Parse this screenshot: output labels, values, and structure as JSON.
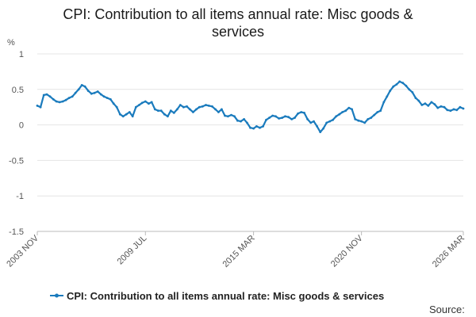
{
  "colors": {
    "series": "#1a7bbd",
    "grid": "#e4e4e4",
    "axis": "#bbbbbb",
    "text": "#555555"
  },
  "chart_data": {
    "type": "line",
    "title_lines": [
      "CPI: Contribution to all items annual rate: Misc goods &",
      "services"
    ],
    "ylabel": "%",
    "ylim": [
      -1.5,
      1
    ],
    "yticks": [
      1,
      0.5,
      0,
      -0.5,
      -1,
      -1.5
    ],
    "ytick_labels": [
      "1",
      "0.5",
      "0",
      "-0.5",
      "-1",
      "-1.5"
    ],
    "xlim": [
      2003.83,
      2026.17
    ],
    "xticks": [
      {
        "label": "2003 NOV",
        "x": 2003.83
      },
      {
        "label": "2009 JUL",
        "x": 2009.5
      },
      {
        "label": "2015 MAR",
        "x": 2015.17
      },
      {
        "label": "2020 NOV",
        "x": 2020.83
      },
      {
        "label": "2026 MAR",
        "x": 2026.17
      }
    ],
    "grid": true,
    "legend_position": "bottom",
    "source_label": "Source:",
    "series": [
      {
        "name": "CPI: Contribution to all items annual rate: Misc goods & services",
        "points": [
          [
            2003.83,
            0.27
          ],
          [
            2004.0,
            0.25
          ],
          [
            2004.17,
            0.42
          ],
          [
            2004.33,
            0.43
          ],
          [
            2004.5,
            0.4
          ],
          [
            2004.67,
            0.36
          ],
          [
            2004.83,
            0.33
          ],
          [
            2005.0,
            0.32
          ],
          [
            2005.17,
            0.33
          ],
          [
            2005.33,
            0.35
          ],
          [
            2005.5,
            0.38
          ],
          [
            2005.67,
            0.4
          ],
          [
            2005.83,
            0.45
          ],
          [
            2006.0,
            0.5
          ],
          [
            2006.17,
            0.56
          ],
          [
            2006.33,
            0.54
          ],
          [
            2006.5,
            0.48
          ],
          [
            2006.67,
            0.44
          ],
          [
            2006.83,
            0.45
          ],
          [
            2007.0,
            0.47
          ],
          [
            2007.17,
            0.43
          ],
          [
            2007.33,
            0.4
          ],
          [
            2007.5,
            0.38
          ],
          [
            2007.67,
            0.36
          ],
          [
            2007.83,
            0.3
          ],
          [
            2008.0,
            0.25
          ],
          [
            2008.17,
            0.15
          ],
          [
            2008.33,
            0.12
          ],
          [
            2008.5,
            0.15
          ],
          [
            2008.67,
            0.18
          ],
          [
            2008.83,
            0.12
          ],
          [
            2009.0,
            0.25
          ],
          [
            2009.17,
            0.28
          ],
          [
            2009.33,
            0.31
          ],
          [
            2009.5,
            0.33
          ],
          [
            2009.67,
            0.3
          ],
          [
            2009.83,
            0.32
          ],
          [
            2010.0,
            0.22
          ],
          [
            2010.17,
            0.2
          ],
          [
            2010.33,
            0.2
          ],
          [
            2010.5,
            0.15
          ],
          [
            2010.67,
            0.12
          ],
          [
            2010.83,
            0.2
          ],
          [
            2011.0,
            0.17
          ],
          [
            2011.17,
            0.22
          ],
          [
            2011.33,
            0.28
          ],
          [
            2011.5,
            0.25
          ],
          [
            2011.67,
            0.26
          ],
          [
            2011.83,
            0.22
          ],
          [
            2012.0,
            0.18
          ],
          [
            2012.17,
            0.22
          ],
          [
            2012.33,
            0.25
          ],
          [
            2012.5,
            0.26
          ],
          [
            2012.67,
            0.28
          ],
          [
            2012.83,
            0.27
          ],
          [
            2013.0,
            0.26
          ],
          [
            2013.17,
            0.22
          ],
          [
            2013.33,
            0.18
          ],
          [
            2013.5,
            0.22
          ],
          [
            2013.67,
            0.13
          ],
          [
            2013.83,
            0.12
          ],
          [
            2014.0,
            0.14
          ],
          [
            2014.17,
            0.12
          ],
          [
            2014.33,
            0.06
          ],
          [
            2014.5,
            0.05
          ],
          [
            2014.67,
            0.08
          ],
          [
            2014.83,
            0.03
          ],
          [
            2015.0,
            -0.04
          ],
          [
            2015.17,
            -0.05
          ],
          [
            2015.33,
            -0.02
          ],
          [
            2015.5,
            -0.04
          ],
          [
            2015.67,
            -0.02
          ],
          [
            2015.83,
            0.07
          ],
          [
            2016.0,
            0.1
          ],
          [
            2016.17,
            0.13
          ],
          [
            2016.33,
            0.12
          ],
          [
            2016.5,
            0.09
          ],
          [
            2016.67,
            0.1
          ],
          [
            2016.83,
            0.12
          ],
          [
            2017.0,
            0.11
          ],
          [
            2017.17,
            0.08
          ],
          [
            2017.33,
            0.1
          ],
          [
            2017.5,
            0.16
          ],
          [
            2017.67,
            0.18
          ],
          [
            2017.83,
            0.17
          ],
          [
            2018.0,
            0.08
          ],
          [
            2018.17,
            0.03
          ],
          [
            2018.33,
            0.05
          ],
          [
            2018.5,
            -0.02
          ],
          [
            2018.67,
            -0.1
          ],
          [
            2018.83,
            -0.05
          ],
          [
            2019.0,
            0.03
          ],
          [
            2019.17,
            0.05
          ],
          [
            2019.33,
            0.07
          ],
          [
            2019.5,
            0.12
          ],
          [
            2019.67,
            0.15
          ],
          [
            2019.83,
            0.18
          ],
          [
            2020.0,
            0.2
          ],
          [
            2020.17,
            0.24
          ],
          [
            2020.33,
            0.22
          ],
          [
            2020.5,
            0.08
          ],
          [
            2020.67,
            0.06
          ],
          [
            2020.83,
            0.05
          ],
          [
            2021.0,
            0.03
          ],
          [
            2021.17,
            0.08
          ],
          [
            2021.33,
            0.1
          ],
          [
            2021.5,
            0.14
          ],
          [
            2021.67,
            0.18
          ],
          [
            2021.83,
            0.2
          ],
          [
            2022.0,
            0.32
          ],
          [
            2022.17,
            0.4
          ],
          [
            2022.33,
            0.48
          ],
          [
            2022.5,
            0.54
          ],
          [
            2022.67,
            0.57
          ],
          [
            2022.83,
            0.61
          ],
          [
            2023.0,
            0.59
          ],
          [
            2023.17,
            0.55
          ],
          [
            2023.33,
            0.5
          ],
          [
            2023.5,
            0.46
          ],
          [
            2023.67,
            0.38
          ],
          [
            2023.83,
            0.34
          ],
          [
            2024.0,
            0.28
          ],
          [
            2024.17,
            0.3
          ],
          [
            2024.33,
            0.27
          ],
          [
            2024.5,
            0.32
          ],
          [
            2024.67,
            0.29
          ],
          [
            2024.83,
            0.24
          ],
          [
            2025.0,
            0.26
          ],
          [
            2025.17,
            0.25
          ],
          [
            2025.33,
            0.21
          ],
          [
            2025.5,
            0.2
          ],
          [
            2025.67,
            0.22
          ],
          [
            2025.83,
            0.21
          ],
          [
            2026.0,
            0.25
          ],
          [
            2026.17,
            0.23
          ]
        ]
      }
    ]
  }
}
